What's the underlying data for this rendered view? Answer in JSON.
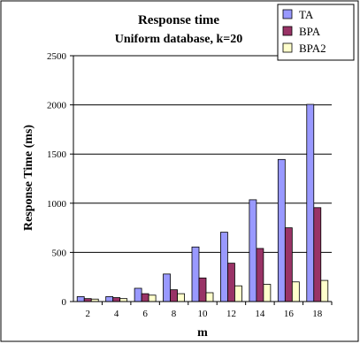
{
  "chart_data": {
    "type": "bar",
    "title": "Response time",
    "subtitle": "Uniform database, k=20",
    "xlabel": "m",
    "ylabel": "Response Time (ms)",
    "ylim": [
      0,
      2500
    ],
    "yticks": [
      0,
      500,
      1000,
      1500,
      2000,
      2500
    ],
    "grid": true,
    "legend_position": "top-right",
    "categories": [
      "2",
      "4",
      "6",
      "8",
      "10",
      "12",
      "14",
      "16",
      "18"
    ],
    "series": [
      {
        "name": "TA",
        "color": "#9999ff",
        "values": [
          50,
          50,
          135,
          280,
          555,
          705,
          1035,
          1445,
          2005
        ]
      },
      {
        "name": "BPA",
        "color": "#993366",
        "values": [
          30,
          40,
          80,
          120,
          240,
          390,
          540,
          750,
          955
        ]
      },
      {
        "name": "BPA2",
        "color": "#ffffcc",
        "values": [
          25,
          30,
          65,
          80,
          90,
          160,
          175,
          200,
          215
        ]
      }
    ]
  }
}
